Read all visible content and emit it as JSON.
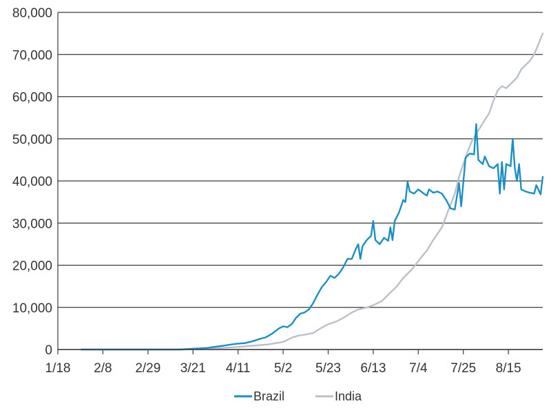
{
  "chart_data": {
    "type": "line",
    "title": "",
    "xlabel": "",
    "ylabel": "",
    "ylim": [
      0,
      80000
    ],
    "yticks": [
      0,
      10000,
      20000,
      30000,
      40000,
      50000,
      60000,
      70000,
      80000
    ],
    "ytick_labels": [
      "0",
      "10,000",
      "20,000",
      "30,000",
      "40,000",
      "50,000",
      "60,000",
      "70,000",
      "80,000"
    ],
    "xlim": [
      "2020-01-18",
      "2020-08-31"
    ],
    "xticks": [
      "2020-01-18",
      "2020-02-08",
      "2020-02-29",
      "2020-03-21",
      "2020-04-11",
      "2020-05-02",
      "2020-05-23",
      "2020-06-13",
      "2020-07-04",
      "2020-07-25",
      "2020-08-15"
    ],
    "xtick_labels": [
      "1/18",
      "2/8",
      "2/29",
      "3/21",
      "4/11",
      "5/2",
      "5/23",
      "6/13",
      "7/4",
      "7/25",
      "8/15"
    ],
    "grid": "horizontal",
    "legend_position": "bottom-center",
    "series": [
      {
        "name": "Brazil",
        "color": "#1a8fc4",
        "points": [
          [
            "2020-01-29",
            0
          ],
          [
            "2020-03-15",
            0
          ],
          [
            "2020-03-21",
            200
          ],
          [
            "2020-03-25",
            300
          ],
          [
            "2020-03-28",
            400
          ],
          [
            "2020-04-01",
            700
          ],
          [
            "2020-04-04",
            900
          ],
          [
            "2020-04-08",
            1200
          ],
          [
            "2020-04-11",
            1400
          ],
          [
            "2020-04-14",
            1500
          ],
          [
            "2020-04-18",
            2000
          ],
          [
            "2020-04-21",
            2500
          ],
          [
            "2020-04-24",
            2900
          ],
          [
            "2020-04-27",
            3800
          ],
          [
            "2020-04-30",
            5000
          ],
          [
            "2020-05-02",
            5500
          ],
          [
            "2020-05-04",
            5300
          ],
          [
            "2020-05-06",
            6000
          ],
          [
            "2020-05-08",
            7500
          ],
          [
            "2020-05-10",
            8500
          ],
          [
            "2020-05-12",
            8800
          ],
          [
            "2020-05-14",
            9500
          ],
          [
            "2020-05-16",
            11000
          ],
          [
            "2020-05-18",
            13000
          ],
          [
            "2020-05-20",
            14800
          ],
          [
            "2020-05-22",
            16000
          ],
          [
            "2020-05-24",
            17500
          ],
          [
            "2020-05-26",
            17000
          ],
          [
            "2020-05-28",
            18000
          ],
          [
            "2020-05-30",
            19500
          ],
          [
            "2020-06-01",
            21500
          ],
          [
            "2020-06-03",
            21500
          ],
          [
            "2020-06-05",
            24000
          ],
          [
            "2020-06-06",
            25000
          ],
          [
            "2020-06-07",
            21500
          ],
          [
            "2020-06-08",
            24500
          ],
          [
            "2020-06-10",
            26000
          ],
          [
            "2020-06-12",
            27000
          ],
          [
            "2020-06-13",
            30500
          ],
          [
            "2020-06-14",
            26000
          ],
          [
            "2020-06-16",
            25000
          ],
          [
            "2020-06-18",
            26500
          ],
          [
            "2020-06-20",
            25800
          ],
          [
            "2020-06-21",
            29000
          ],
          [
            "2020-06-22",
            26000
          ],
          [
            "2020-06-23",
            30500
          ],
          [
            "2020-06-25",
            32500
          ],
          [
            "2020-06-27",
            35500
          ],
          [
            "2020-06-28",
            35000
          ],
          [
            "2020-06-29",
            39800
          ],
          [
            "2020-06-30",
            37500
          ],
          [
            "2020-07-02",
            37000
          ],
          [
            "2020-07-04",
            38000
          ],
          [
            "2020-07-06",
            37200
          ],
          [
            "2020-07-08",
            36500
          ],
          [
            "2020-07-09",
            38000
          ],
          [
            "2020-07-11",
            37200
          ],
          [
            "2020-07-13",
            37500
          ],
          [
            "2020-07-15",
            37000
          ],
          [
            "2020-07-17",
            35500
          ],
          [
            "2020-07-19",
            33500
          ],
          [
            "2020-07-21",
            33200
          ],
          [
            "2020-07-23",
            39500
          ],
          [
            "2020-07-24",
            34000
          ],
          [
            "2020-07-26",
            45500
          ],
          [
            "2020-07-28",
            46500
          ],
          [
            "2020-07-30",
            46300
          ],
          [
            "2020-07-31",
            53500
          ],
          [
            "2020-08-01",
            45000
          ],
          [
            "2020-08-03",
            44000
          ],
          [
            "2020-08-04",
            45800
          ],
          [
            "2020-08-06",
            43500
          ],
          [
            "2020-08-08",
            43000
          ],
          [
            "2020-08-10",
            44000
          ],
          [
            "2020-08-11",
            37000
          ],
          [
            "2020-08-12",
            44500
          ],
          [
            "2020-08-13",
            38000
          ],
          [
            "2020-08-14",
            44000
          ],
          [
            "2020-08-16",
            43500
          ],
          [
            "2020-08-17",
            50000
          ],
          [
            "2020-08-18",
            43000
          ],
          [
            "2020-08-19",
            40000
          ],
          [
            "2020-08-20",
            44000
          ],
          [
            "2020-08-21",
            38000
          ],
          [
            "2020-08-23",
            37500
          ],
          [
            "2020-08-25",
            37200
          ],
          [
            "2020-08-27",
            37000
          ],
          [
            "2020-08-28",
            39000
          ],
          [
            "2020-08-30",
            36800
          ],
          [
            "2020-08-31",
            41000
          ]
        ]
      },
      {
        "name": "India",
        "color": "#b9c0ca",
        "points": [
          [
            "2020-01-29",
            0
          ],
          [
            "2020-03-15",
            0
          ],
          [
            "2020-03-21",
            100
          ],
          [
            "2020-03-28",
            200
          ],
          [
            "2020-04-04",
            400
          ],
          [
            "2020-04-11",
            600
          ],
          [
            "2020-04-18",
            900
          ],
          [
            "2020-04-25",
            1200
          ],
          [
            "2020-05-02",
            1800
          ],
          [
            "2020-05-06",
            2800
          ],
          [
            "2020-05-09",
            3300
          ],
          [
            "2020-05-13",
            3600
          ],
          [
            "2020-05-16",
            3900
          ],
          [
            "2020-05-20",
            5200
          ],
          [
            "2020-05-23",
            6000
          ],
          [
            "2020-05-27",
            6700
          ],
          [
            "2020-05-30",
            7500
          ],
          [
            "2020-06-03",
            8800
          ],
          [
            "2020-06-06",
            9500
          ],
          [
            "2020-06-10",
            10000
          ],
          [
            "2020-06-13",
            10500
          ],
          [
            "2020-06-17",
            11500
          ],
          [
            "2020-06-20",
            13000
          ],
          [
            "2020-06-24",
            15000
          ],
          [
            "2020-06-27",
            17000
          ],
          [
            "2020-07-01",
            19000
          ],
          [
            "2020-07-04",
            21000
          ],
          [
            "2020-07-08",
            23500
          ],
          [
            "2020-07-11",
            26000
          ],
          [
            "2020-07-15",
            29000
          ],
          [
            "2020-07-18",
            33000
          ],
          [
            "2020-07-21",
            37000
          ],
          [
            "2020-07-23",
            41000
          ],
          [
            "2020-07-25",
            44000
          ],
          [
            "2020-07-27",
            47000
          ],
          [
            "2020-07-29",
            49500
          ],
          [
            "2020-08-01",
            52000
          ],
          [
            "2020-08-04",
            54500
          ],
          [
            "2020-08-06",
            56000
          ],
          [
            "2020-08-08",
            59000
          ],
          [
            "2020-08-10",
            61500
          ],
          [
            "2020-08-12",
            62500
          ],
          [
            "2020-08-14",
            62000
          ],
          [
            "2020-08-16",
            63000
          ],
          [
            "2020-08-19",
            64500
          ],
          [
            "2020-08-21",
            66500
          ],
          [
            "2020-08-23",
            67500
          ],
          [
            "2020-08-25",
            68500
          ],
          [
            "2020-08-27",
            70000
          ],
          [
            "2020-08-29",
            72500
          ],
          [
            "2020-08-31",
            75000
          ]
        ]
      }
    ]
  }
}
